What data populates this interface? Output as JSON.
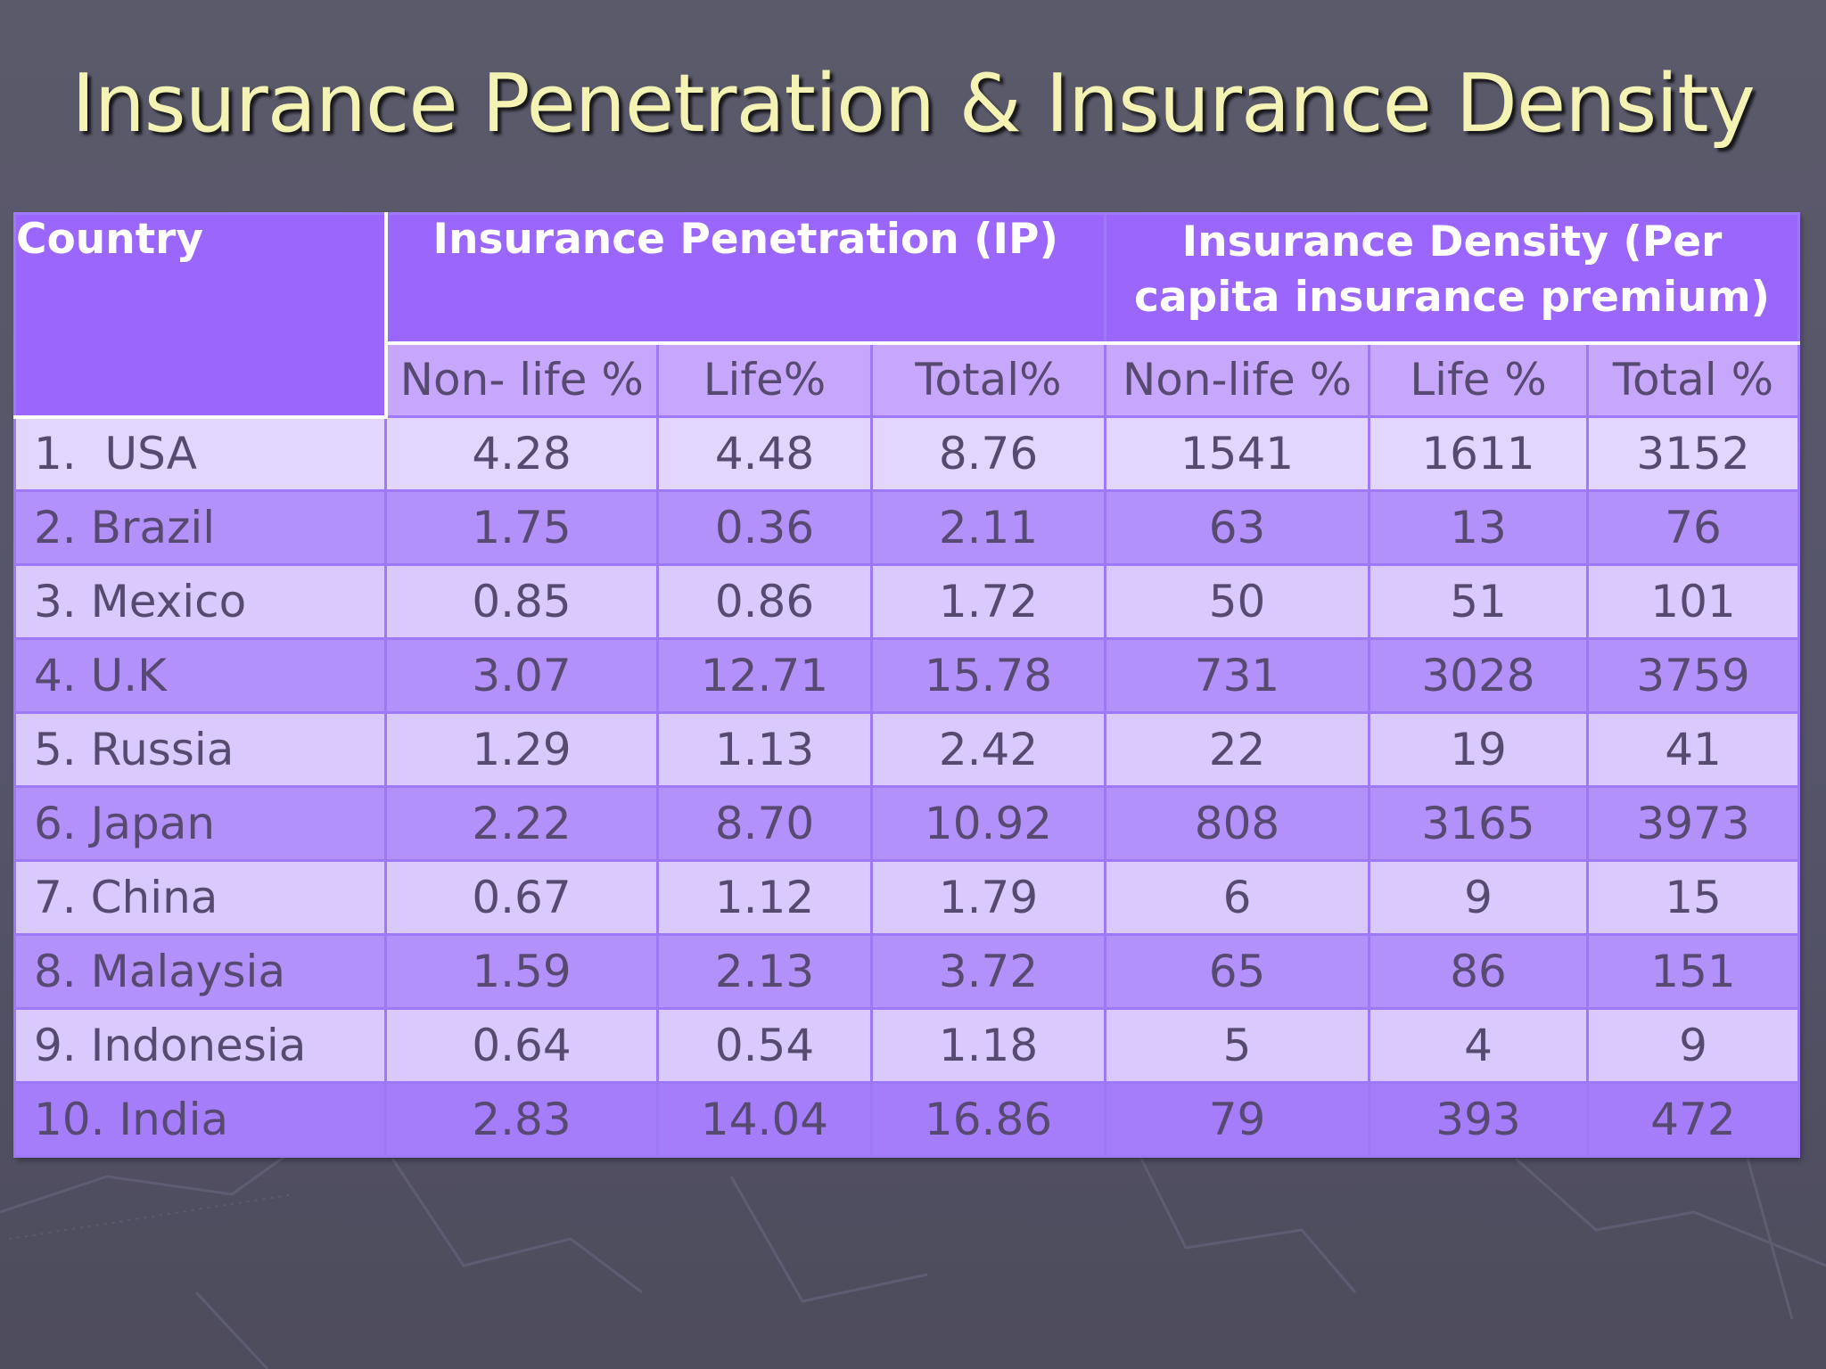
{
  "slide": {
    "title": "Insurance Penetration & Insurance Density"
  },
  "table": {
    "header": {
      "country": "Country",
      "ip_group": "Insurance Penetration (IP)",
      "id_group_line1": "Insurance Density (Per",
      "id_group_line2": "capita insurance premium)"
    },
    "subheaders": [
      "Non- life %",
      "Life%",
      "Total%",
      "Non-life %",
      "Life %",
      "Total %"
    ],
    "rows": [
      {
        "country": "1.  USA",
        "cells": [
          "4.28",
          "4.48",
          "8.76",
          "1541",
          "1611",
          "3152"
        ]
      },
      {
        "country": "2. Brazil",
        "cells": [
          "1.75",
          "0.36",
          "2.11",
          "63",
          "13",
          "76"
        ]
      },
      {
        "country": "3. Mexico",
        "cells": [
          "0.85",
          "0.86",
          "1.72",
          "50",
          "51",
          "101"
        ]
      },
      {
        "country": "4. U.K",
        "cells": [
          "3.07",
          "12.71",
          "15.78",
          "731",
          "3028",
          "3759"
        ]
      },
      {
        "country": "5. Russia",
        "cells": [
          "1.29",
          "1.13",
          "2.42",
          "22",
          "19",
          "41"
        ]
      },
      {
        "country": "6. Japan",
        "cells": [
          "2.22",
          "8.70",
          "10.92",
          "808",
          "3165",
          "3973"
        ]
      },
      {
        "country": "7. China",
        "cells": [
          "0.67",
          "1.12",
          "1.79",
          "6",
          "9",
          "15"
        ]
      },
      {
        "country": "8. Malaysia",
        "cells": [
          "1.59",
          "2.13",
          "3.72",
          "65",
          "86",
          "151"
        ]
      },
      {
        "country": "9. Indonesia",
        "cells": [
          "0.64",
          "0.54",
          "1.18",
          "5",
          "4",
          "9"
        ]
      },
      {
        "country": "10. India",
        "cells": [
          "2.83",
          "14.04",
          "16.86",
          "79",
          "393",
          "472"
        ]
      }
    ]
  },
  "colors": {
    "background": "#56556a",
    "title": "#f4f3b3",
    "header": "#9a66fb",
    "subheader": "#c6a7fb",
    "row_light": "#dac9fc",
    "row_dark": "#b391fb",
    "text": "#574a70"
  }
}
